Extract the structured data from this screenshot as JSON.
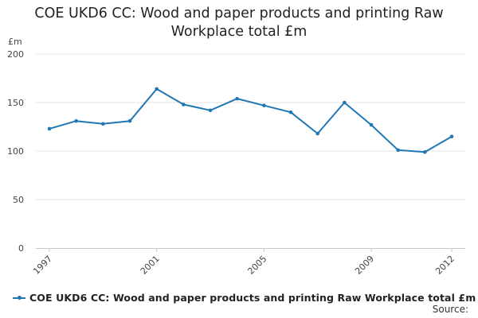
{
  "chart_data": {
    "type": "line",
    "title_lines": [
      "COE UKD6 CC: Wood and paper products and printing Raw",
      "Workplace total £m"
    ],
    "ylabel": "£m",
    "xlabel": "",
    "ylim": [
      0,
      200
    ],
    "yticks": [
      0,
      50,
      100,
      150,
      200
    ],
    "xlim": [
      1997,
      2012
    ],
    "xticks": [
      1997,
      2001,
      2005,
      2009,
      2012
    ],
    "grid": true,
    "legend_position": "bottom",
    "series": [
      {
        "name": "COE UKD6 CC: Wood and paper products and printing Raw Workplace total £m",
        "color": "#1f78b4",
        "x": [
          1997,
          1998,
          1999,
          2000,
          2001,
          2002,
          2003,
          2004,
          2005,
          2006,
          2007,
          2008,
          2009,
          2010,
          2011,
          2012
        ],
        "values": [
          123,
          131,
          128,
          131,
          164,
          148,
          142,
          154,
          147,
          140,
          118,
          150,
          127,
          101,
          99,
          115
        ]
      }
    ],
    "source_label": "Source:"
  }
}
